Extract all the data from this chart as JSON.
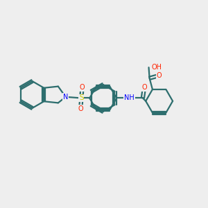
{
  "background_color": "#eeeeee",
  "bond_color": "#2d6e6e",
  "bond_width": 1.6,
  "atom_colors": {
    "N": "#0000ff",
    "O": "#ff2200",
    "S": "#cccc00",
    "H": "#888888",
    "C": "#2d6e6e"
  },
  "figsize": [
    3.0,
    3.0
  ],
  "dpi": 100
}
